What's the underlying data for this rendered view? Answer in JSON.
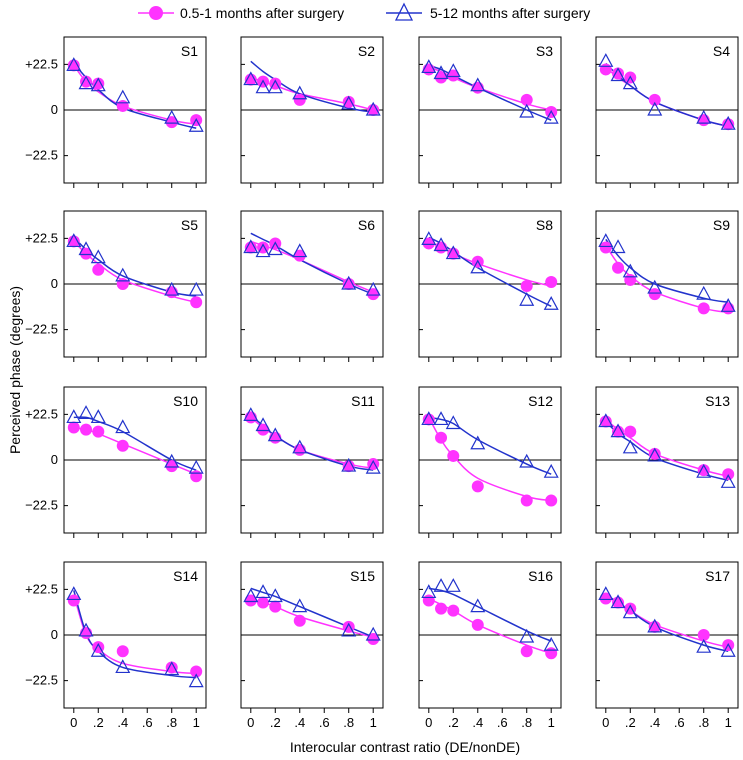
{
  "legend": {
    "items": [
      {
        "label": "0.5-1 months after surgery",
        "color": "#ff33ff",
        "marker": "filled-circle"
      },
      {
        "label": "5-12 months after surgery",
        "color": "#2233cc",
        "marker": "open-triangle"
      }
    ]
  },
  "chart_data": {
    "type": "scatter",
    "title": "",
    "xlabel": "Interocular contrast ratio (DE/nonDE)",
    "ylabel": "Perceived phase (degrees)",
    "xlim": [
      -0.08,
      1.08
    ],
    "ylim": [
      -36,
      36
    ],
    "x": [
      0,
      0.1,
      0.2,
      0.4,
      0.8,
      1
    ],
    "x_tick_values": [
      0,
      0.2,
      0.4,
      0.6,
      0.8,
      1
    ],
    "x_tick_labels": [
      "0",
      ".2",
      ".4",
      ".6",
      ".8",
      "1"
    ],
    "y_tick_values": [
      22.5,
      0,
      -22.5
    ],
    "y_tick_labels": [
      "+22.5",
      "0",
      "−22.5"
    ],
    "colors": {
      "early": "#ff33ff",
      "late": "#2233cc",
      "reference": "#000000"
    },
    "panels": [
      {
        "name": "S1",
        "early": [
          22,
          14,
          13,
          2,
          -6,
          -5
        ],
        "early_fit": [
          22,
          14,
          9,
          2,
          -5,
          -7
        ],
        "late": [
          22,
          13,
          12,
          6,
          -4,
          -8
        ],
        "late_fit": [
          23,
          16,
          10,
          1,
          -6,
          -9
        ]
      },
      {
        "name": "S2",
        "early": [
          15,
          14,
          13,
          5,
          4,
          0
        ],
        "early_fit": [
          16,
          14,
          12,
          8,
          3,
          0
        ],
        "late": [
          15,
          11,
          11,
          8,
          3,
          0
        ],
        "late_fit": [
          24,
          19,
          15,
          8,
          1,
          -1
        ]
      },
      {
        "name": "S3",
        "early": [
          20,
          16,
          17,
          11,
          5,
          -1
        ],
        "early_fit": [
          21,
          19,
          16,
          11,
          3,
          0
        ],
        "late": [
          21,
          18,
          19,
          12,
          -1,
          -4
        ],
        "late_fit": [
          22,
          20,
          17,
          11,
          0,
          -5
        ]
      },
      {
        "name": "S4",
        "early": [
          20,
          18,
          16,
          5,
          -5,
          -7
        ],
        "early_fit": [
          21,
          16,
          12,
          4,
          -5,
          -8
        ],
        "late": [
          24,
          17,
          13,
          0,
          -4,
          -7
        ],
        "late_fit": [
          23,
          17,
          12,
          4,
          -5,
          -8
        ]
      },
      {
        "name": "S5",
        "early": [
          21,
          15,
          7,
          0,
          -4,
          -9
        ],
        "early_fit": [
          21,
          15,
          10,
          2,
          -6,
          -9
        ],
        "late": [
          21,
          17,
          13,
          4,
          -3,
          -3
        ],
        "late_fit": [
          23,
          17,
          12,
          4,
          -4,
          -6
        ]
      },
      {
        "name": "S6",
        "early": [
          18,
          18,
          20,
          14,
          0,
          -5
        ],
        "early_fit": [
          21,
          19,
          17,
          12,
          1,
          -4
        ],
        "late": [
          18,
          16,
          17,
          16,
          0,
          -3
        ],
        "late_fit": [
          25,
          22,
          19,
          12,
          0,
          -5
        ]
      },
      {
        "name": "S8",
        "early": [
          20,
          18,
          15,
          11,
          -1,
          1
        ],
        "early_fit": [
          21,
          18,
          15,
          10,
          2,
          -1
        ],
        "late": [
          22,
          19,
          15,
          8,
          -8,
          -10
        ],
        "late_fit": [
          23,
          20,
          16,
          8,
          -5,
          -11
        ]
      },
      {
        "name": "S9",
        "early": [
          18,
          8,
          2,
          -5,
          -12,
          -12
        ],
        "early_fit": [
          19,
          10,
          4,
          -4,
          -12,
          -14
        ],
        "late": [
          21,
          18,
          6,
          -2,
          -5,
          -11
        ],
        "late_fit": [
          22,
          14,
          8,
          0,
          -7,
          -9
        ]
      },
      {
        "name": "S10",
        "early": [
          16,
          15,
          14,
          7,
          -3,
          -8
        ],
        "early_fit": [
          16,
          15,
          13,
          8,
          -2,
          -7
        ],
        "late": [
          21,
          23,
          21,
          16,
          -1,
          -4
        ],
        "late_fit": [
          21,
          21,
          19,
          14,
          0,
          -5
        ]
      },
      {
        "name": "S11",
        "early": [
          21,
          15,
          11,
          5,
          -3,
          -2
        ],
        "early_fit": [
          21,
          16,
          12,
          5,
          -2,
          -4
        ],
        "late": [
          22,
          17,
          12,
          6,
          -3,
          -4
        ],
        "late_fit": [
          22,
          17,
          12,
          5,
          -3,
          -5
        ]
      },
      {
        "name": "S12",
        "early": [
          20,
          11,
          2,
          -13,
          -20,
          -20
        ],
        "early_fit": [
          21,
          10,
          2,
          -9,
          -18,
          -20
        ],
        "late": [
          20,
          20,
          18,
          8,
          -1,
          -6
        ],
        "late_fit": [
          21,
          20,
          18,
          10,
          -2,
          -7
        ]
      },
      {
        "name": "S13",
        "early": [
          19,
          14,
          14,
          3,
          -5,
          -7
        ],
        "early_fit": [
          20,
          15,
          11,
          3,
          -5,
          -8
        ],
        "late": [
          19,
          14,
          6,
          2,
          -6,
          -11
        ],
        "late_fit": [
          19,
          13,
          9,
          1,
          -7,
          -10
        ]
      },
      {
        "name": "S14",
        "early": [
          17,
          1,
          -6,
          -8,
          -16,
          -18
        ],
        "early_fit": [
          20,
          0,
          -7,
          -14,
          -18,
          -19
        ],
        "late": [
          20,
          2,
          -8,
          -16,
          -17,
          -23
        ],
        "late_fit": [
          22,
          1,
          -8,
          -16,
          -20,
          -21
        ]
      },
      {
        "name": "S15",
        "early": [
          17,
          16,
          14,
          7,
          4,
          -2
        ],
        "early_fit": [
          17,
          16,
          14,
          9,
          2,
          -1
        ],
        "late": [
          19,
          21,
          19,
          14,
          2,
          0
        ],
        "late_fit": [
          23,
          21,
          19,
          14,
          4,
          -1
        ]
      },
      {
        "name": "S16",
        "early": [
          17,
          13,
          12,
          5,
          -8,
          -9
        ],
        "early_fit": [
          18,
          15,
          12,
          5,
          -5,
          -9
        ],
        "late": [
          21,
          24,
          24,
          14,
          -1,
          -5
        ],
        "late_fit": [
          23,
          22,
          20,
          14,
          2,
          -3
        ]
      },
      {
        "name": "S17",
        "early": [
          18,
          16,
          13,
          4,
          0,
          -5
        ],
        "early_fit": [
          19,
          16,
          12,
          5,
          -3,
          -6
        ],
        "late": [
          20,
          16,
          11,
          4,
          -6,
          -8
        ],
        "late_fit": [
          20,
          16,
          12,
          4,
          -5,
          -8
        ]
      }
    ]
  }
}
